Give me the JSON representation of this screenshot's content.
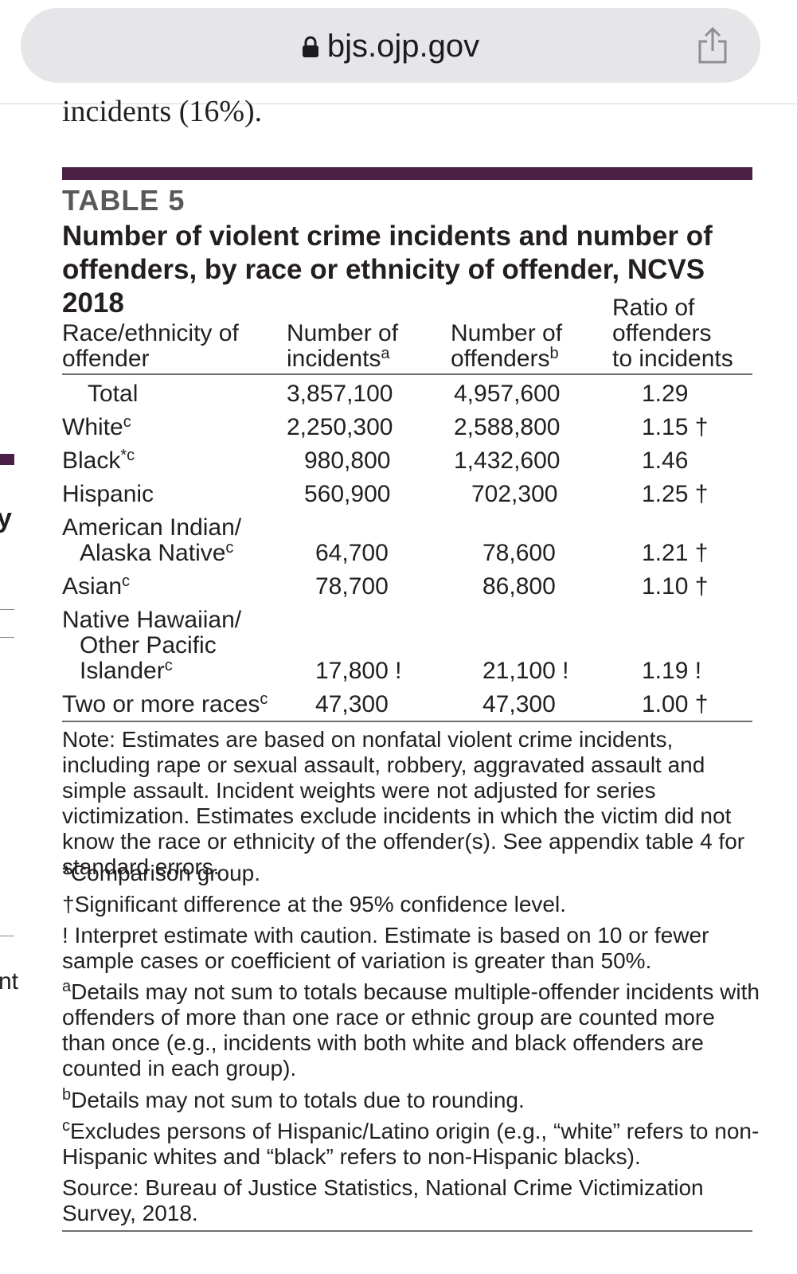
{
  "browser": {
    "url": "bjs.ojp.gov"
  },
  "page": {
    "cut_text": "incidents (16%).",
    "left_letter": "y",
    "left_fragment": "nt"
  },
  "table": {
    "label": "TABLE 5",
    "title": "Number of violent crime incidents and number of offenders, by race or ethnicity of offender, NCVS 2018",
    "headers": {
      "col1_line1": "Race/ethnicity of",
      "col1_line2": "offender",
      "col2_line1": "Number of",
      "col2_line2": "incidents",
      "col2_sup": "a",
      "col3_line1": "Number of",
      "col3_line2": "offenders",
      "col3_sup": "b",
      "col4_line1": "Ratio of",
      "col4_line2": "offenders",
      "col4_line3": "to incidents"
    },
    "rows": [
      {
        "label": "Total",
        "sup": "",
        "incidents": "3,857,100",
        "offenders": "4,957,600",
        "ratio": "1.29"
      },
      {
        "label": "White",
        "sup": "c",
        "incidents": "2,250,300",
        "offenders": "2,588,800",
        "ratio": "1.15 †"
      },
      {
        "label": "Black",
        "sup": "*c",
        "incidents": "980,800",
        "offenders": "1,432,600",
        "ratio": "1.46"
      },
      {
        "label": "Hispanic",
        "sup": "",
        "incidents": "560,900",
        "offenders": "702,300",
        "ratio": "1.25 †"
      },
      {
        "label1": "American Indian/",
        "label2": "Alaska Native",
        "sup": "c",
        "incidents": "64,700",
        "offenders": "78,600",
        "ratio": "1.21 †"
      },
      {
        "label": "Asian",
        "sup": "c",
        "incidents": "78,700",
        "offenders": "86,800",
        "ratio": "1.10 †"
      },
      {
        "label1": "Native Hawaiian/",
        "label2": "Other Pacific",
        "label3": "Islander",
        "sup": "c",
        "incidents": "17,800 !",
        "offenders": "21,100 !",
        "ratio": "1.19 !"
      },
      {
        "label": "Two or more races",
        "sup": "c",
        "incidents": "47,300",
        "offenders": "47,300",
        "ratio": "1.00 †"
      }
    ],
    "notes": {
      "note": "Note: Estimates are based on nonfatal violent crime incidents, including rape or sexual assault, robbery, aggravated assault and simple assault. Incident weights were not adjusted for series victimization. Estimates exclude incidents in which the victim did not know the race or ethnicity of the offender(s). See appendix table 4 for standard errors.",
      "comparison": "*Comparison group.",
      "significant": "†Significant difference at the 95% confidence level.",
      "caution": "! Interpret estimate with caution. Estimate is based on 10 or fewer sample cases or coefficient of variation is greater than 50%.",
      "a_mark": "a",
      "a_text": "Details may not sum to totals because multiple-offender incidents with offenders of more than one race or ethnic group are counted more than once (e.g., incidents with both white and black offenders are counted in each group).",
      "b_mark": "b",
      "b_text": "Details may not sum to totals due to rounding.",
      "c_mark": "c",
      "c_text": "Excludes persons of Hispanic/Latino origin (e.g., “white” refers to non-Hispanic whites and “black” refers to non-Hispanic blacks).",
      "source": "Source: Bureau of Justice Statistics, National Crime Victimization Survey, 2018."
    }
  },
  "colors": {
    "accent": "#4a2046",
    "label_gray": "#58595b",
    "text": "#231f20",
    "urlbar_bg": "#e6e6e9"
  }
}
